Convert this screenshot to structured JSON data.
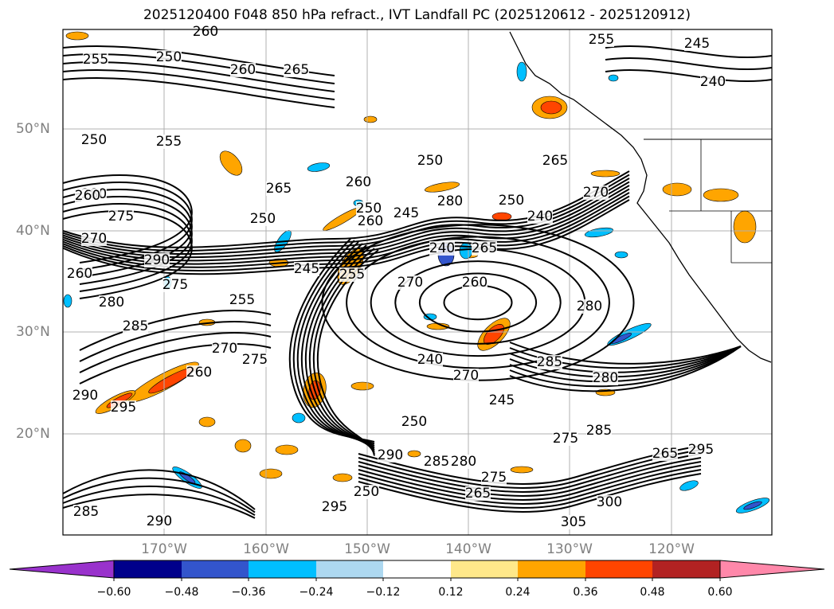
{
  "title": "2025120400 F048 850 hPa refract., IVT Landfall PC (2025120612 - 2025120912)",
  "lat_labels": [
    "50°N",
    "40°N",
    "30°N",
    "20°N"
  ],
  "lon_labels": [
    "170°W",
    "160°W",
    "150°W",
    "140°W",
    "130°W",
    "120°W"
  ],
  "colorbar": {
    "ticks": [
      "−0.60",
      "−0.48",
      "−0.36",
      "−0.24",
      "−0.12",
      "0.12",
      "0.24",
      "0.36",
      "0.48",
      "0.60"
    ],
    "colors": [
      "#9932cc",
      "#00008b",
      "#3355cc",
      "#00bfff",
      "#add8f0",
      "#ffffff",
      "#ffe88a",
      "#ffa500",
      "#ff4500",
      "#b22222",
      "#ff88aa"
    ]
  },
  "contour_labels": [
    "255",
    "250",
    "260",
    "265",
    "260",
    "255",
    "245",
    "240",
    "250",
    "255",
    "280",
    "275",
    "250",
    "265",
    "270",
    "260",
    "270",
    "260",
    "265",
    "260",
    "250",
    "245",
    "280",
    "250",
    "240",
    "240",
    "265",
    "270",
    "260",
    "255",
    "245",
    "255",
    "260",
    "250",
    "275",
    "280",
    "285",
    "290",
    "280",
    "285",
    "280",
    "240",
    "270",
    "245",
    "275",
    "290",
    "295",
    "260",
    "270",
    "285",
    "275",
    "290",
    "285",
    "280",
    "275",
    "300",
    "305",
    "295",
    "285",
    "290",
    "295",
    "250",
    "265",
    "265",
    "250"
  ],
  "fill_colors": {
    "pos_light": "#ffa500",
    "pos_mid": "#ff4500",
    "neg_light": "#00bfff",
    "neg_dark": "#3355cc"
  }
}
